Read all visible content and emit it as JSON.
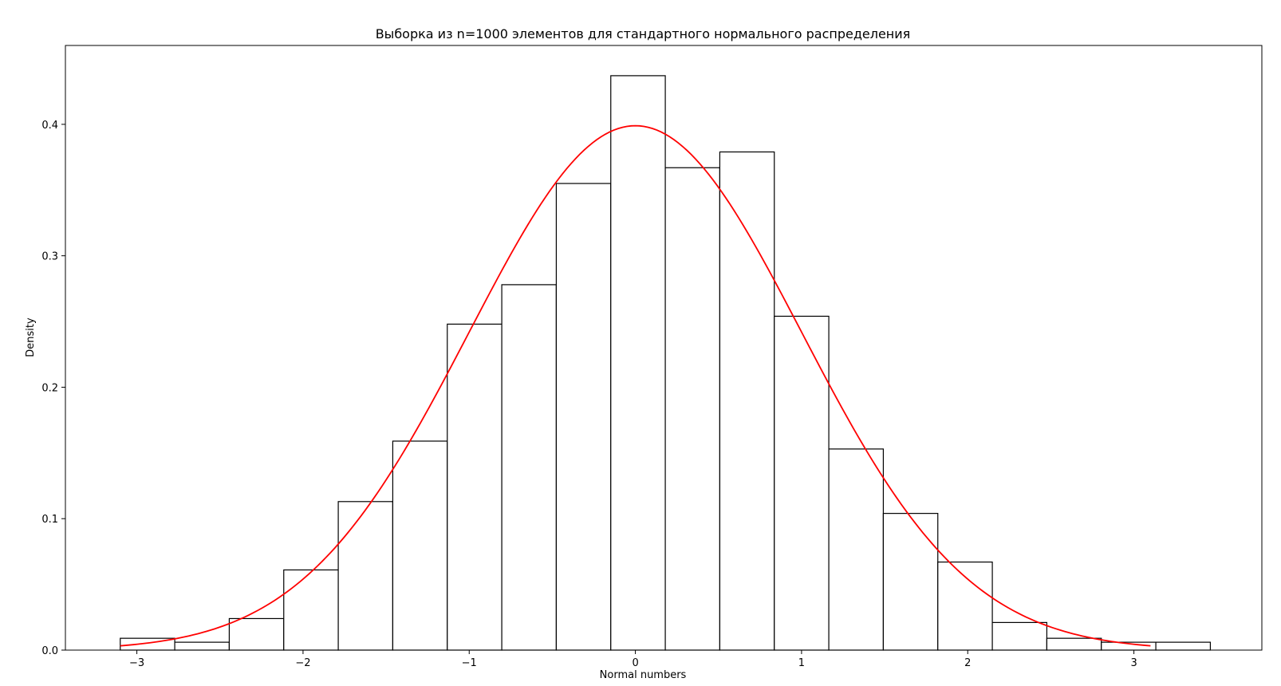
{
  "chart_data": {
    "type": "bar",
    "title": "Выборка из n=1000 элементов для стандартного нормального распределения",
    "xlabel": "Normal numbers",
    "ylabel": "Density",
    "xlim": [
      -3.43,
      3.77
    ],
    "ylim": [
      0,
      0.46
    ],
    "xticks": [
      -3,
      -2,
      -1,
      0,
      1,
      2,
      3
    ],
    "xtick_labels": [
      "−3",
      "−2",
      "−1",
      "0",
      "1",
      "2",
      "3"
    ],
    "yticks": [
      0.0,
      0.1,
      0.2,
      0.3,
      0.4
    ],
    "ytick_labels": [
      "0.0",
      "0.1",
      "0.2",
      "0.3",
      "0.4"
    ],
    "grid": false,
    "histogram": {
      "bin_edges": [
        -3.1,
        -2.772,
        -2.444,
        -2.116,
        -1.788,
        -1.46,
        -1.132,
        -0.804,
        -0.476,
        -0.148,
        0.18,
        0.508,
        0.836,
        1.164,
        1.492,
        1.82,
        2.148,
        2.476,
        2.804,
        3.132,
        3.46
      ],
      "density": [
        0.009,
        0.006,
        0.024,
        0.061,
        0.113,
        0.159,
        0.248,
        0.278,
        0.355,
        0.437,
        0.367,
        0.379,
        0.254,
        0.153,
        0.104,
        0.067,
        0.021,
        0.009,
        0.006,
        0.006
      ],
      "fill": "#ffffff",
      "edgecolor": "#000000"
    },
    "curve": {
      "type": "line",
      "function": "standard normal pdf",
      "x_range": [
        -3.1,
        3.1
      ],
      "color": "#ff0000"
    }
  }
}
